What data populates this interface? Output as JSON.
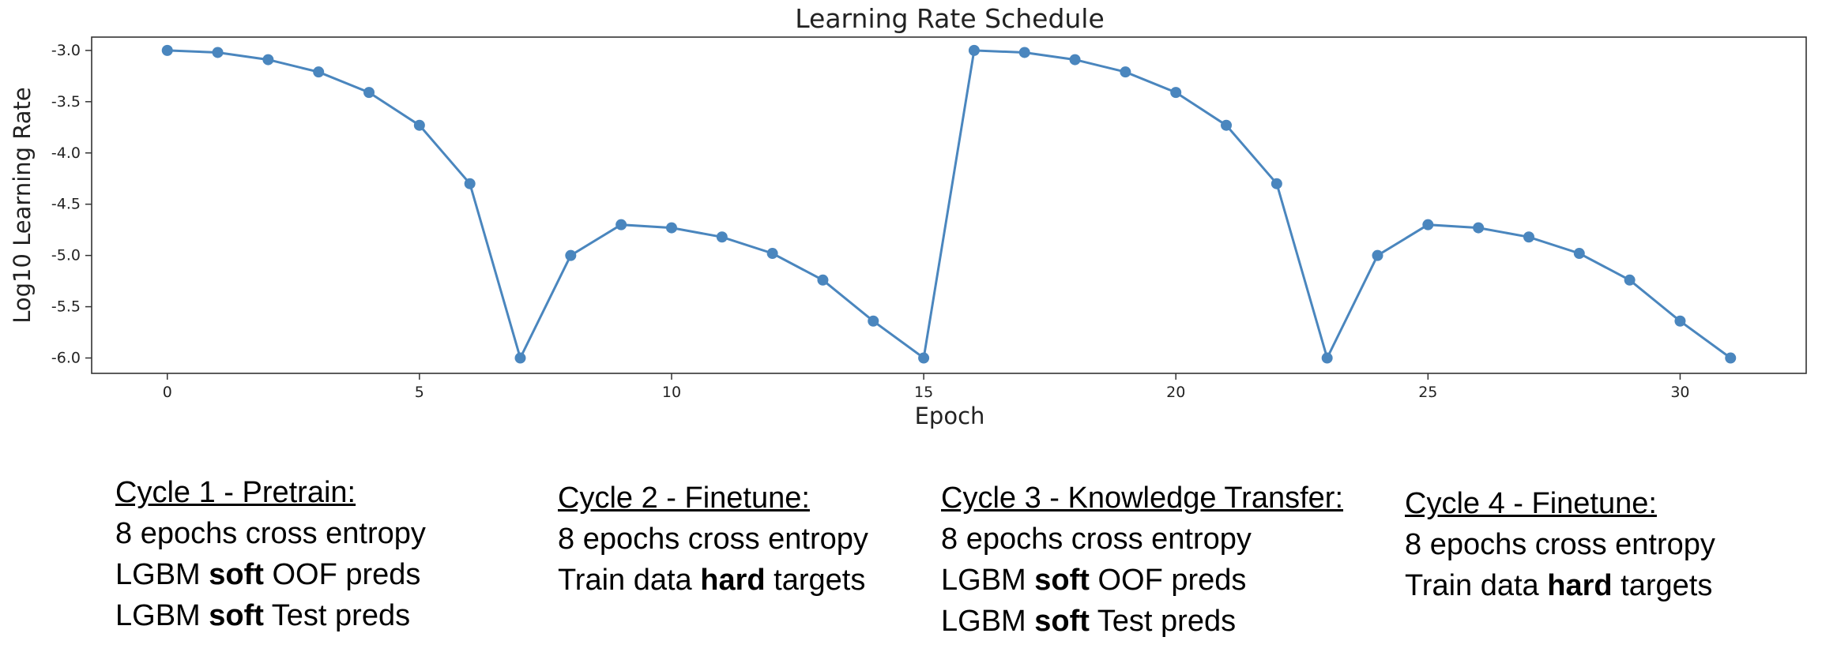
{
  "chart_data": {
    "type": "line",
    "title": "Learning Rate Schedule",
    "xlabel": "Epoch",
    "ylabel": "Log10 Learning Rate",
    "xlim": [
      -1.5,
      32.5
    ],
    "ylim": [
      -6.15,
      -2.87
    ],
    "xticks": [
      0,
      5,
      10,
      15,
      20,
      25,
      30
    ],
    "yticks": [
      -3.0,
      -3.5,
      -4.0,
      -4.5,
      -5.0,
      -5.5,
      -6.0
    ],
    "ytick_labels": [
      "-3.0",
      "-3.5",
      "-4.0",
      "-4.5",
      "-5.0",
      "-5.5",
      "-6.0"
    ],
    "grid": false,
    "color": "#4a86be",
    "series": [
      {
        "x": [
          0,
          1,
          2,
          3,
          4,
          5,
          6,
          7,
          8,
          9,
          10,
          11,
          12,
          13,
          14,
          15,
          16,
          17,
          18,
          19,
          20,
          21,
          22,
          23,
          24,
          25,
          26,
          27,
          28,
          29,
          30,
          31
        ],
        "values": [
          -3.0,
          -3.02,
          -3.09,
          -3.21,
          -3.41,
          -3.73,
          -4.3,
          -6.0,
          -5.0,
          -4.7,
          -4.73,
          -4.82,
          -4.98,
          -5.24,
          -5.64,
          -6.0,
          -3.0,
          -3.02,
          -3.09,
          -3.21,
          -3.41,
          -3.73,
          -4.3,
          -6.0,
          -5.0,
          -4.7,
          -4.73,
          -4.82,
          -4.98,
          -5.24,
          -5.64,
          -6.0
        ]
      }
    ]
  },
  "cycles": [
    {
      "title": "Cycle 1 - Pretrain:",
      "lines": [
        {
          "pre": "8 epochs cross entropy",
          "bold": "",
          "post": ""
        },
        {
          "pre": "LGBM ",
          "bold": "soft",
          "post": " OOF preds"
        },
        {
          "pre": "LGBM ",
          "bold": "soft",
          "post": " Test preds"
        }
      ]
    },
    {
      "title": "Cycle 2 - Finetune:",
      "lines": [
        {
          "pre": "8 epochs cross entropy",
          "bold": "",
          "post": ""
        },
        {
          "pre": "Train data ",
          "bold": "hard",
          "post": " targets"
        }
      ]
    },
    {
      "title": "Cycle 3 - Knowledge Transfer:",
      "lines": [
        {
          "pre": "8 epochs cross entropy",
          "bold": "",
          "post": ""
        },
        {
          "pre": "LGBM ",
          "bold": "soft",
          "post": " OOF preds"
        },
        {
          "pre": "LGBM ",
          "bold": "soft",
          "post": " Test preds"
        }
      ]
    },
    {
      "title": "Cycle 4 - Finetune:",
      "lines": [
        {
          "pre": "8 epochs cross entropy",
          "bold": "",
          "post": ""
        },
        {
          "pre": "Train data ",
          "bold": "hard",
          "post": " targets"
        }
      ]
    }
  ]
}
